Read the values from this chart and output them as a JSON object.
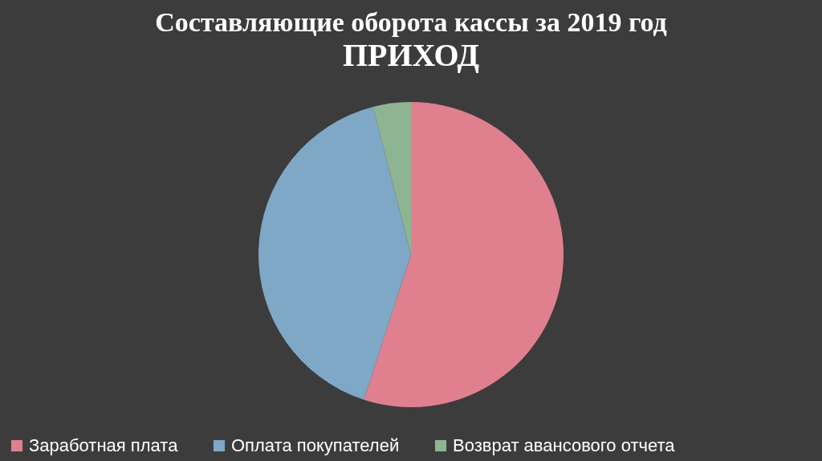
{
  "chart_data": {
    "type": "pie",
    "title": "Составляющие оборота кассы за 2019 год",
    "subtitle": "ПРИХОД",
    "categories": [
      "Заработная плата",
      "Оплата покупателей",
      "Возврат авансового отчета"
    ],
    "values": [
      55,
      41,
      4
    ],
    "colors": [
      "#e0808f",
      "#7fa7c6",
      "#8db592"
    ],
    "legend": "bottom"
  }
}
